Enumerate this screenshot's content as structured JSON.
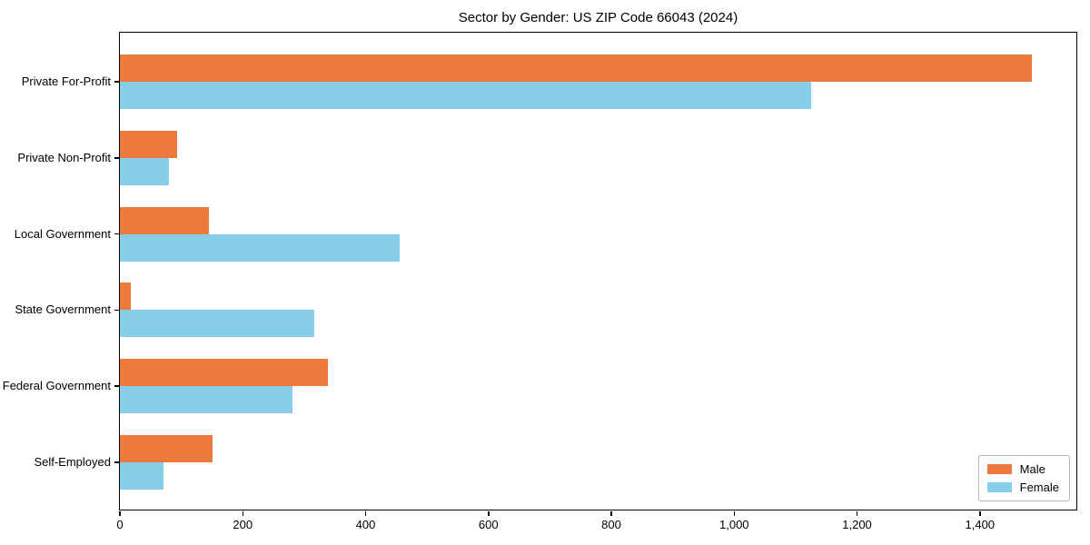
{
  "chart_data": {
    "type": "bar",
    "orientation": "horizontal",
    "title": "Sector by Gender: US ZIP Code 66043 (2024)",
    "xlabel": "",
    "ylabel": "",
    "categories": [
      "Private For-Profit",
      "Private Non-Profit",
      "Local Government",
      "State Government",
      "Federal Government",
      "Self-Employed"
    ],
    "series": [
      {
        "name": "Male",
        "color": "#ec7a3c",
        "values": [
          1485,
          93,
          145,
          18,
          338,
          151
        ]
      },
      {
        "name": "Female",
        "color": "#87ceeb",
        "values": [
          1125,
          80,
          456,
          317,
          281,
          71
        ]
      }
    ],
    "xlim": [
      0,
      1560
    ],
    "xticks": {
      "values": [
        0,
        200,
        400,
        600,
        800,
        1000,
        1200,
        1400
      ],
      "labels": [
        "0",
        "200",
        "400",
        "600",
        "800",
        "1,000",
        "1,200",
        "1,400"
      ]
    },
    "grid": false,
    "legend_position": "lower right",
    "background": "#ffffff",
    "axis_color": "#000000"
  }
}
